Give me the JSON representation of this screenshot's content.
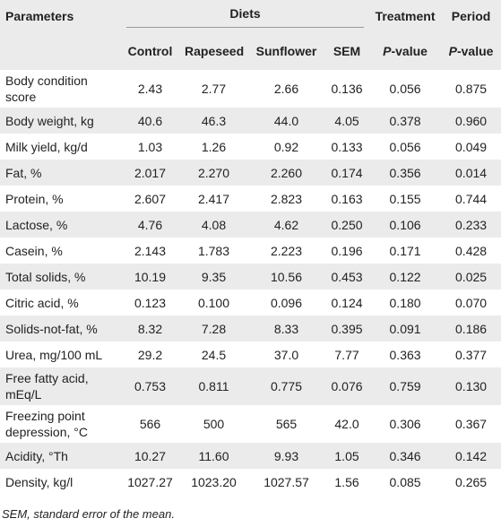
{
  "header": {
    "parameters": "Parameters",
    "diets": "Diets",
    "treatment": "Treatment",
    "period": "Period",
    "diet_columns": [
      "Control",
      "Rapeseed",
      "Sunflower",
      "SEM"
    ],
    "treatment_sub": {
      "italic": "P",
      "text": "-value"
    },
    "period_sub": {
      "italic": "P",
      "text": "-value"
    }
  },
  "table": {
    "rows": [
      [
        "Body condition score",
        "2.43",
        "2.77",
        "2.66",
        "0.136",
        "0.056",
        "0.875"
      ],
      [
        "Body weight, kg",
        "40.6",
        "46.3",
        "44.0",
        "4.05",
        "0.378",
        "0.960"
      ],
      [
        "Milk yield, kg/d",
        "1.03",
        "1.26",
        "0.92",
        "0.133",
        "0.056",
        "0.049"
      ],
      [
        "Fat, %",
        "2.017",
        "2.270",
        "2.260",
        "0.174",
        "0.356",
        "0.014"
      ],
      [
        "Protein, %",
        "2.607",
        "2.417",
        "2.823",
        "0.163",
        "0.155",
        "0.744"
      ],
      [
        "Lactose, %",
        "4.76",
        "4.08",
        "4.62",
        "0.250",
        "0.106",
        "0.233"
      ],
      [
        "Casein, %",
        "2.143",
        "1.783",
        "2.223",
        "0.196",
        "0.171",
        "0.428"
      ],
      [
        "Total solids, %",
        "10.19",
        "9.35",
        "10.56",
        "0.453",
        "0.122",
        "0.025"
      ],
      [
        "Citric acid, %",
        "0.123",
        "0.100",
        "0.096",
        "0.124",
        "0.180",
        "0.070"
      ],
      [
        "Solids-not-fat, %",
        "8.32",
        "7.28",
        "8.33",
        "0.395",
        "0.091",
        "0.186"
      ],
      [
        "Urea, mg/100 mL",
        "29.2",
        "24.5",
        "37.0",
        "7.77",
        "0.363",
        "0.377"
      ],
      [
        "Free fatty acid, mEq/L",
        "0.753",
        "0.811",
        "0.775",
        "0.076",
        "0.759",
        "0.130"
      ],
      [
        "Freezing point depression, °C",
        "566",
        "500",
        "565",
        "42.0",
        "0.306",
        "0.367"
      ],
      [
        "Acidity, °Th",
        "10.27",
        "11.60",
        "9.93",
        "1.05",
        "0.346",
        "0.142"
      ],
      [
        "Density, kg/l",
        "1027.27",
        "1023.20",
        "1027.57",
        "1.56",
        "0.085",
        "0.265"
      ]
    ]
  },
  "footnote": "SEM, standard error of the mean."
}
